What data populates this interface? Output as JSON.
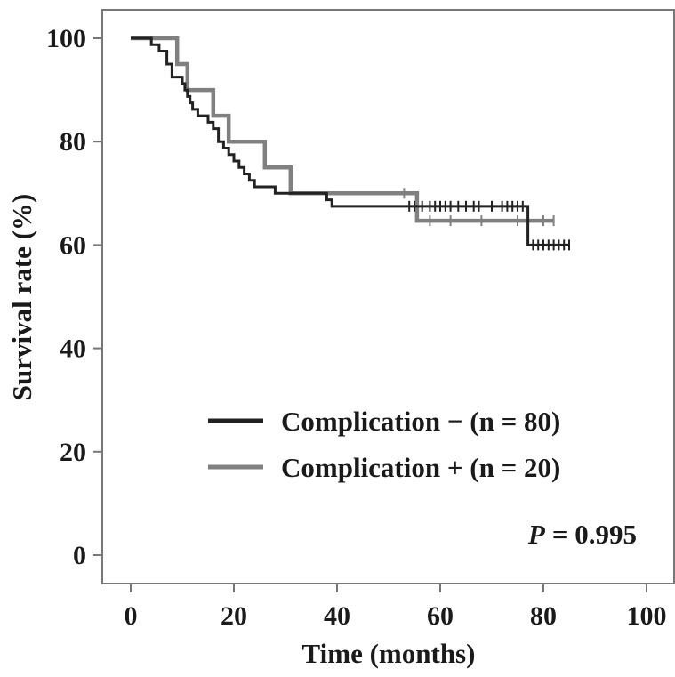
{
  "chart_data": {
    "type": "line",
    "subtype": "kaplan-meier",
    "xlabel": "Time (months)",
    "ylabel": "Survival rate (%)",
    "xlim": [
      0,
      100
    ],
    "ylim": [
      0,
      100
    ],
    "xticks": [
      0,
      20,
      40,
      60,
      80,
      100
    ],
    "yticks": [
      0,
      20,
      40,
      60,
      80,
      100
    ],
    "grid": false,
    "legend_position": "bottom-right",
    "annotation": {
      "label": "P",
      "value": "= 0.995"
    },
    "series": [
      {
        "name": "Complication − (n = 80)",
        "color": "#222222",
        "steps": [
          [
            0,
            100
          ],
          [
            4,
            98.75
          ],
          [
            5.5,
            97.5
          ],
          [
            7,
            95
          ],
          [
            8,
            92.5
          ],
          [
            10,
            91.25
          ],
          [
            10.5,
            90
          ],
          [
            11,
            88.75
          ],
          [
            11.5,
            87.5
          ],
          [
            12,
            86.25
          ],
          [
            13,
            85
          ],
          [
            15,
            83.75
          ],
          [
            16,
            82.5
          ],
          [
            17,
            80
          ],
          [
            18,
            78.75
          ],
          [
            19,
            77.5
          ],
          [
            20,
            76.25
          ],
          [
            21,
            75
          ],
          [
            22,
            73.75
          ],
          [
            23,
            72.5
          ],
          [
            24,
            71.25
          ],
          [
            28,
            70
          ],
          [
            38,
            68.75
          ],
          [
            39,
            67.5
          ],
          [
            77,
            60
          ]
        ],
        "end": 85,
        "censored": [
          [
            54,
            67.5
          ],
          [
            55,
            67.5
          ],
          [
            56.5,
            67.5
          ],
          [
            58,
            67.5
          ],
          [
            59,
            67.5
          ],
          [
            60,
            67.5
          ],
          [
            61,
            67.5
          ],
          [
            62,
            67.5
          ],
          [
            63.5,
            67.5
          ],
          [
            65,
            67.5
          ],
          [
            66.5,
            67.5
          ],
          [
            67.5,
            67.5
          ],
          [
            70,
            67.5
          ],
          [
            72,
            67.5
          ],
          [
            73,
            67.5
          ],
          [
            74,
            67.5
          ],
          [
            75,
            67.5
          ],
          [
            76,
            67.5
          ],
          [
            78,
            60
          ],
          [
            79,
            60
          ],
          [
            80,
            60
          ],
          [
            81,
            60
          ],
          [
            82,
            60
          ],
          [
            83,
            60
          ],
          [
            84,
            60
          ],
          [
            85,
            60
          ]
        ]
      },
      {
        "name": "Complication + (n = 20)",
        "color": "#808080",
        "steps": [
          [
            0,
            100
          ],
          [
            9,
            95
          ],
          [
            11,
            90
          ],
          [
            16,
            85
          ],
          [
            19,
            80
          ],
          [
            26,
            75
          ],
          [
            31,
            70
          ],
          [
            55.5,
            64.7
          ]
        ],
        "end": 82,
        "censored": [
          [
            53,
            70
          ],
          [
            58,
            64.7
          ],
          [
            62,
            64.7
          ],
          [
            68,
            64.7
          ],
          [
            75,
            64.7
          ],
          [
            80,
            64.7
          ],
          [
            82,
            64.7
          ]
        ]
      }
    ]
  }
}
